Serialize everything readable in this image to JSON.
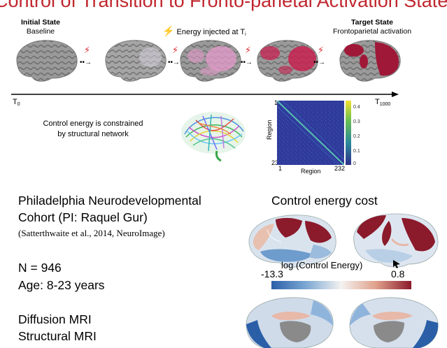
{
  "header": {
    "title_partial": "Control of Transition to Fronto-parietal Activation State"
  },
  "stages": {
    "initial_title": "Initial State",
    "initial_sub": "Baseline",
    "injected_text": "Energy injected at T",
    "injected_sub": "i",
    "target_title": "Target State",
    "target_sub": "Frontoparietal activation"
  },
  "timeline": {
    "start": "T",
    "start_sub": "0",
    "end": "T",
    "end_sub": "1000"
  },
  "network_note": {
    "line1": "Control energy is constrained",
    "line2": "by structural network"
  },
  "matrix": {
    "ylabel": "Region",
    "xlabel": "Region",
    "y_top": "1",
    "y_bottom": "232",
    "x_left": "1",
    "x_right": "232",
    "colorbar_ticks": [
      "0.4",
      "0.3",
      "0.2",
      "0.1",
      "0"
    ]
  },
  "study": {
    "line1": "Philadelphia Neurodevelopmental",
    "line2": "Cohort (PI: Raquel Gur)",
    "citation": "(Satterthwaite et  al., 2014, NeuroImage)",
    "n": "N = 946",
    "age": "Age: 8-23 years",
    "mod1": "Diffusion MRI",
    "mod2": "Structural MRI"
  },
  "cost": {
    "title": "Control energy cost",
    "colorbar_label": "log (Control Energy)",
    "min": "-13.3",
    "max": "0.8"
  },
  "colors": {
    "accent_red": "#c0262d",
    "activation": "#b01e3c",
    "cortex_gray": "#8e8e8e",
    "cost_low": "#2a5fa8",
    "cost_high": "#8b1a2b"
  }
}
